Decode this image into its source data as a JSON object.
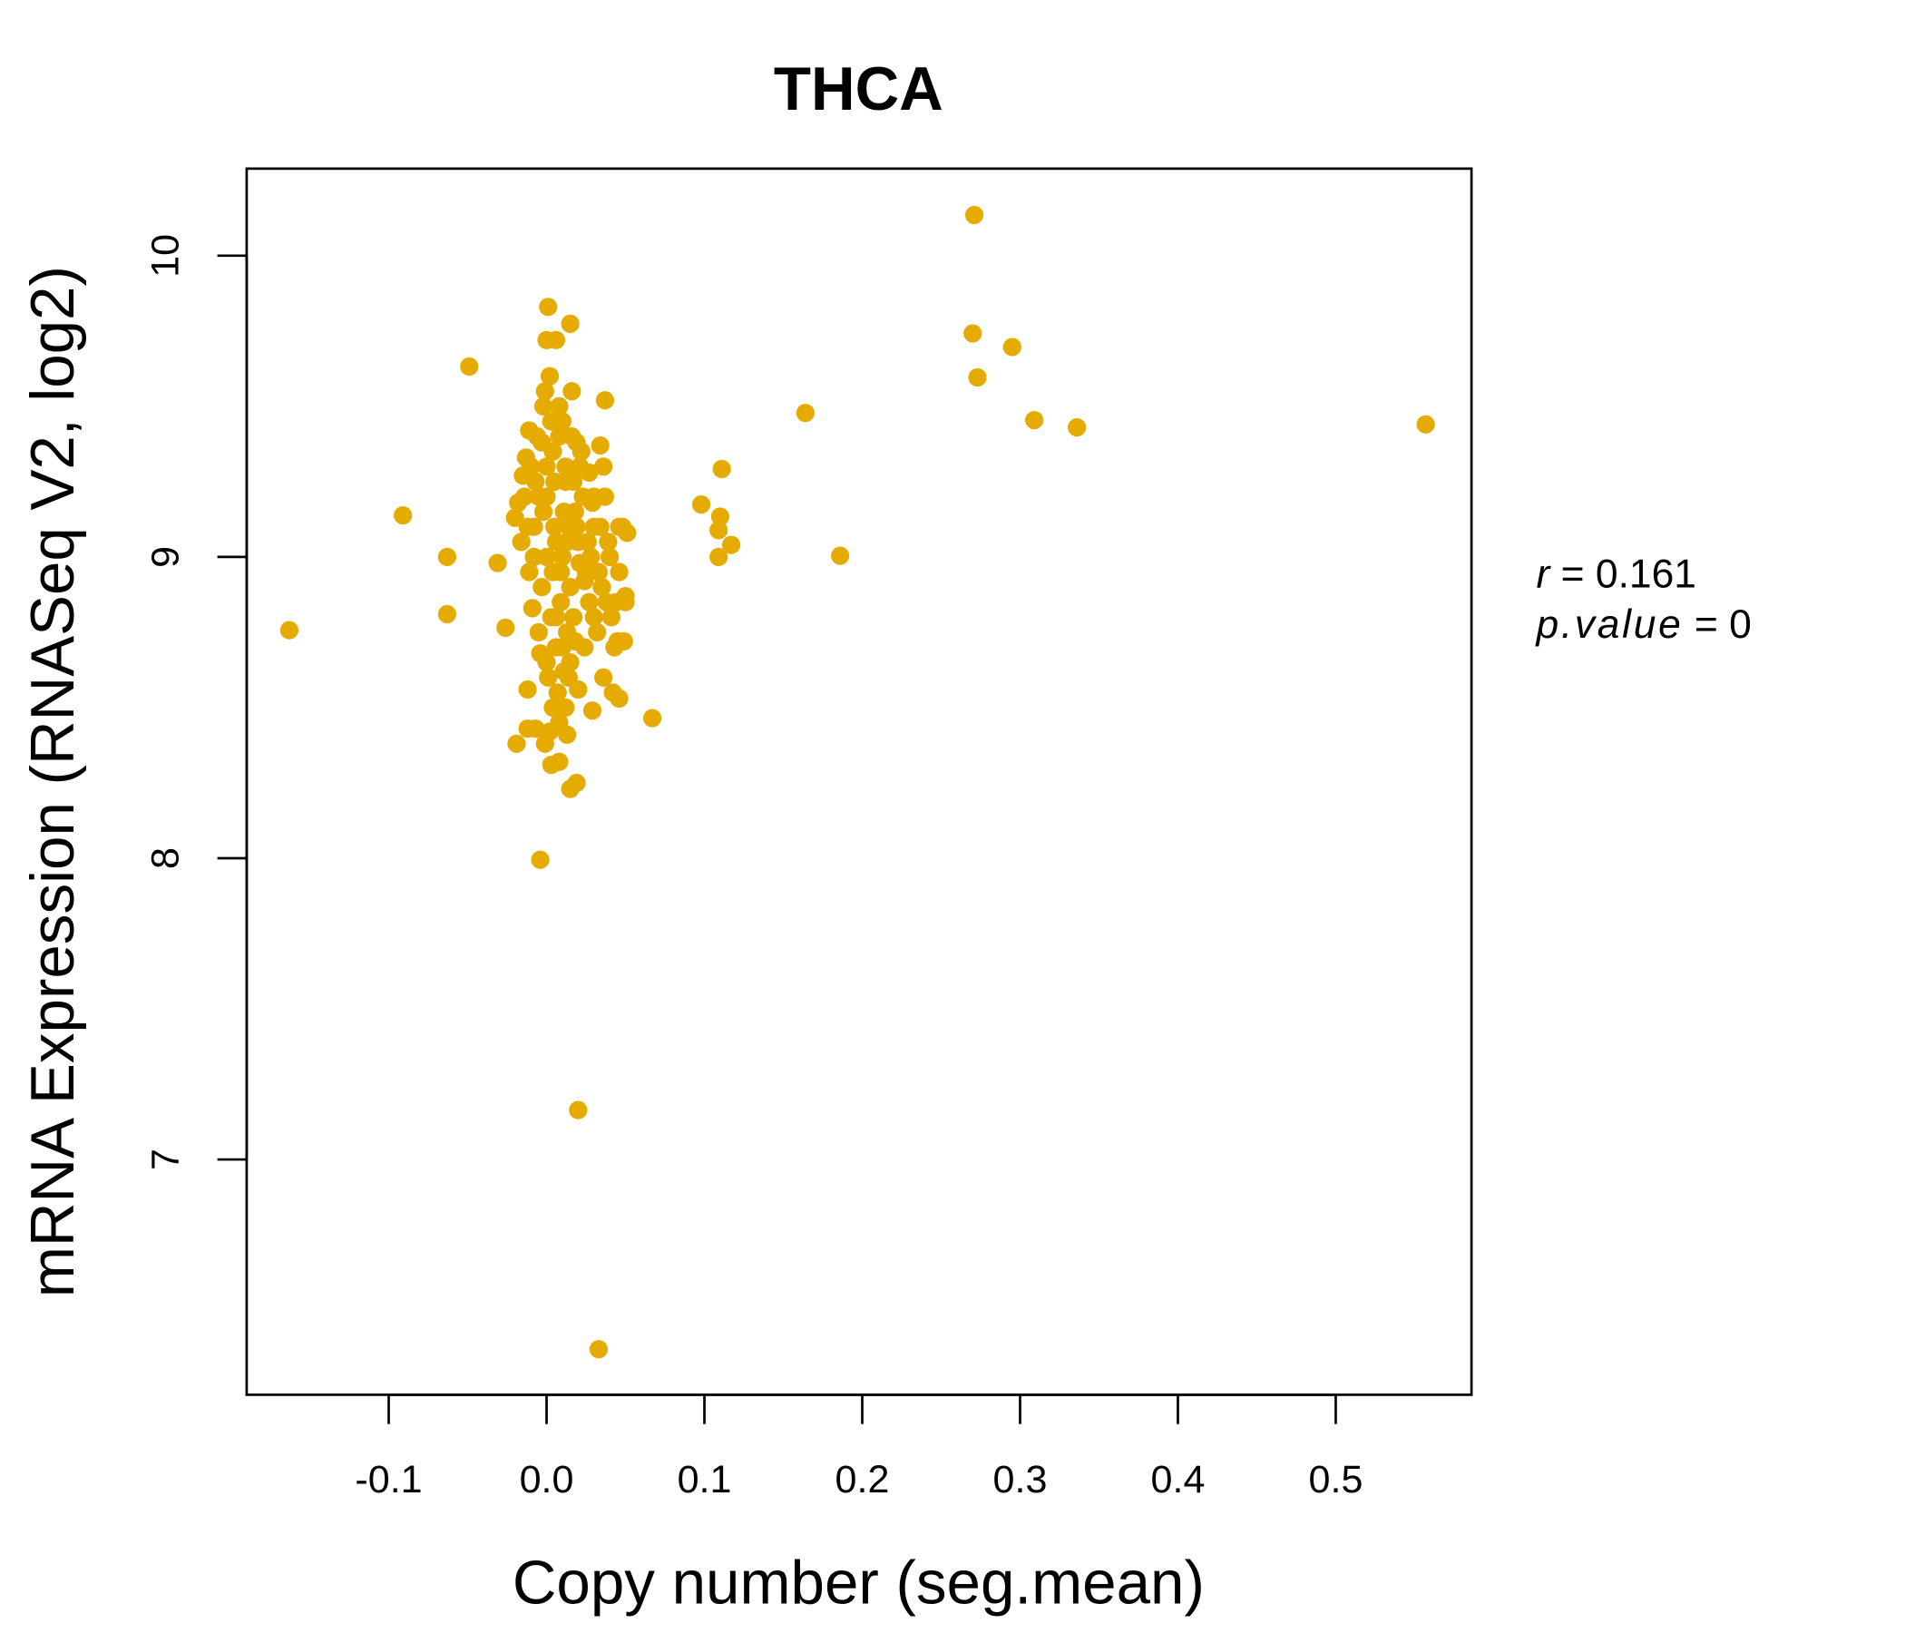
{
  "chart_data": {
    "type": "scatter",
    "title": "THCA",
    "xlabel": "Copy number (seg.mean)",
    "ylabel": "mRNA Expression (RNASeq V2, log2)",
    "xlim": [
      -0.19,
      0.586
    ],
    "ylim": [
      6.219,
      10.289
    ],
    "xticks": [
      -0.1,
      0.0,
      0.1,
      0.2,
      0.3,
      0.4,
      0.5
    ],
    "xtick_labels": [
      "-0.1",
      "0.0",
      "0.1",
      "0.2",
      "0.3",
      "0.4",
      "0.5"
    ],
    "yticks": [
      7,
      8,
      9,
      10
    ],
    "ytick_labels": [
      "7",
      "8",
      "9",
      "10"
    ],
    "grid": false,
    "point_color": "#E5AB00",
    "title_color": "#E5AB00",
    "annotation": {
      "r_label": "r",
      "r_value": "0.161",
      "p_label": "p.value",
      "p_value": "0",
      "equals": "="
    },
    "points": [
      [
        -0.163,
        8.757
      ],
      [
        -0.091,
        9.138
      ],
      [
        -0.049,
        9.632
      ],
      [
        -0.063,
        9.0
      ],
      [
        -0.063,
        8.81
      ],
      [
        -0.031,
        8.98
      ],
      [
        -0.026,
        8.765
      ],
      [
        0.271,
        10.135
      ],
      [
        0.27,
        9.742
      ],
      [
        0.295,
        9.697
      ],
      [
        0.273,
        9.596
      ],
      [
        0.309,
        9.454
      ],
      [
        0.336,
        9.43
      ],
      [
        0.557,
        9.44
      ],
      [
        0.164,
        9.478
      ],
      [
        0.186,
        9.004
      ],
      [
        0.111,
        9.292
      ],
      [
        0.098,
        9.174
      ],
      [
        0.11,
        9.134
      ],
      [
        0.109,
        9.089
      ],
      [
        0.117,
        9.04
      ],
      [
        0.109,
        9.0
      ],
      [
        0.067,
        8.465
      ],
      [
        -0.004,
        7.995
      ],
      [
        0.02,
        7.164
      ],
      [
        0.033,
        6.37
      ],
      [
        0.001,
        9.83
      ],
      [
        0.015,
        9.774
      ],
      [
        0.006,
        9.72
      ],
      [
        0.0,
        9.72
      ],
      [
        0.037,
        9.52
      ],
      [
        0.034,
        9.37
      ],
      [
        0.046,
        9.1
      ],
      [
        0.051,
        9.08
      ],
      [
        0.05,
        8.87
      ],
      [
        0.049,
        8.72
      ],
      [
        0.046,
        8.53
      ],
      [
        0.029,
        8.49
      ],
      [
        0.019,
        8.25
      ],
      [
        0.015,
        8.23
      ],
      [
        0.008,
        8.32
      ],
      [
        0.003,
        8.31
      ],
      [
        -0.019,
        8.38
      ],
      [
        -0.012,
        8.43
      ],
      [
        -0.001,
        8.38
      ],
      [
        0.013,
        8.41
      ],
      [
        -0.012,
        8.56
      ],
      [
        0,
        9.3
      ],
      [
        0.005,
        9.1
      ],
      [
        0.01,
        9.0
      ],
      [
        -0.005,
        9.2
      ],
      [
        0.015,
        8.9
      ],
      [
        0.02,
        9.05
      ],
      [
        0.008,
        9.4
      ],
      [
        -0.002,
        9.5
      ],
      [
        0.012,
        9.25
      ],
      [
        0.003,
        8.8
      ],
      [
        -0.008,
        9.0
      ],
      [
        0.018,
        9.15
      ],
      [
        0.025,
        8.95
      ],
      [
        0.03,
        9.2
      ],
      [
        0.006,
        8.7
      ],
      [
        0.014,
        8.6
      ],
      [
        -0.01,
        9.3
      ],
      [
        -0.012,
        9.1
      ],
      [
        0.022,
        9.35
      ],
      [
        0.028,
        9.0
      ],
      [
        0.035,
        8.9
      ],
      [
        0.04,
        9.0
      ],
      [
        0.032,
        8.75
      ],
      [
        0.038,
        8.85
      ],
      [
        0.002,
        9.6
      ],
      [
        -0.001,
        9.55
      ],
      [
        0.016,
        9.55
      ],
      [
        0.01,
        9.45
      ],
      [
        0.004,
        9.35
      ],
      [
        -0.006,
        9.4
      ],
      [
        -0.014,
        9.2
      ],
      [
        -0.016,
        9.05
      ],
      [
        -0.018,
        9.18
      ],
      [
        -0.02,
        9.13
      ],
      [
        -0.011,
        8.95
      ],
      [
        -0.009,
        8.83
      ],
      [
        -0.004,
        8.68
      ],
      [
        0.001,
        8.6
      ],
      [
        0.007,
        8.55
      ],
      [
        0.012,
        8.5
      ],
      [
        0.02,
        8.56
      ],
      [
        0.024,
        8.7
      ],
      [
        0.03,
        8.8
      ],
      [
        0.036,
        8.6
      ],
      [
        0.043,
        8.7
      ],
      [
        0.046,
        8.95
      ],
      [
        0.042,
        8.55
      ],
      [
        0.036,
        9.3
      ],
      [
        0.037,
        9.2
      ],
      [
        0.03,
        9.1
      ],
      [
        0.026,
        9.05
      ],
      [
        0.021,
        9.3
      ],
      [
        0.016,
        9.4
      ],
      [
        0.011,
        9.15
      ],
      [
        0.006,
        9.05
      ],
      [
        0.0,
        9.0
      ],
      [
        -0.003,
        8.9
      ],
      [
        0.004,
        8.95
      ],
      [
        0.009,
        8.85
      ],
      [
        0.013,
        8.75
      ],
      [
        0.017,
        8.8
      ],
      [
        0.019,
        9.1
      ],
      [
        0.023,
        9.2
      ],
      [
        0.027,
        8.85
      ],
      [
        0.033,
        8.95
      ],
      [
        0.039,
        9.05
      ],
      [
        0.044,
        8.85
      ],
      [
        0.015,
        8.65
      ],
      [
        0.008,
        8.45
      ],
      [
        0.002,
        8.42
      ],
      [
        -0.007,
        8.43
      ],
      [
        0.004,
        8.5
      ],
      [
        0.01,
        8.7
      ],
      [
        -0.002,
        9.15
      ],
      [
        -0.007,
        9.25
      ],
      [
        -0.013,
        9.33
      ],
      [
        -0.015,
        9.27
      ],
      [
        -0.008,
        9.1
      ],
      [
        0.0,
        9.2
      ],
      [
        0.005,
        9.25
      ],
      [
        0.012,
        9.3
      ],
      [
        0.017,
        9.25
      ],
      [
        0.019,
        9.38
      ],
      [
        0.003,
        9.45
      ],
      [
        -0.003,
        9.38
      ],
      [
        0.008,
        9.5
      ],
      [
        0.013,
        9.05
      ],
      [
        0.021,
        8.98
      ],
      [
        0.027,
        9.28
      ],
      [
        0.034,
        9.1
      ],
      [
        0.041,
        8.8
      ],
      [
        0.048,
        9.1
      ],
      [
        0.05,
        8.85
      ],
      [
        0.045,
        8.72
      ],
      [
        -0.011,
        9.42
      ],
      [
        -0.005,
        8.75
      ],
      [
        0.0,
        8.65
      ],
      [
        0.006,
        8.8
      ],
      [
        0.024,
        8.92
      ],
      [
        0.029,
        9.18
      ],
      [
        0.014,
        9.1
      ],
      [
        0.009,
        8.95
      ],
      [
        0.011,
        8.62
      ],
      [
        0.018,
        8.72
      ]
    ]
  }
}
